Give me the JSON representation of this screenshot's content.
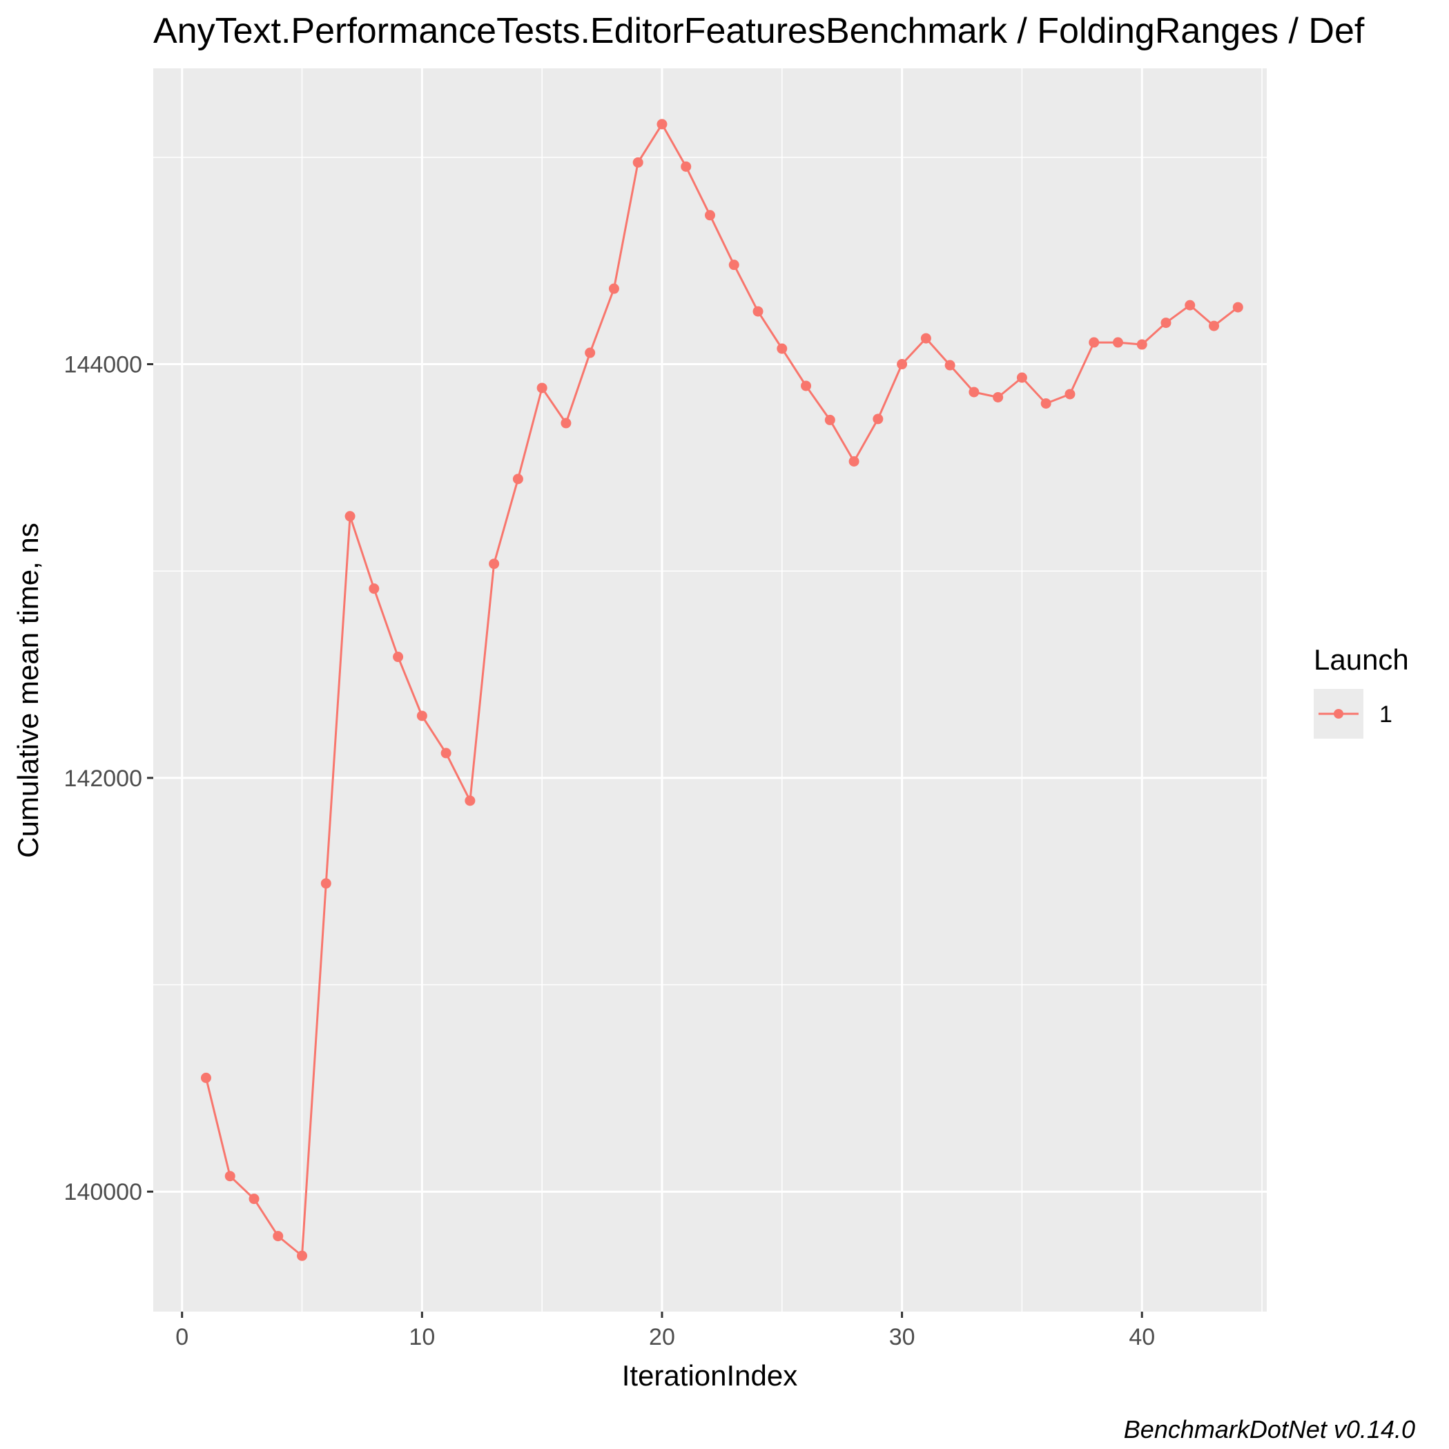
{
  "colors": {
    "panel_bg": "#ebebeb",
    "grid_major": "#ffffff",
    "series": "#f8766d",
    "tick_mark": "#333333",
    "legend_key_bg": "#ebebeb"
  },
  "caption": "BenchmarkDotNet v0.14.0",
  "chart_data": {
    "type": "line",
    "title": "AnyText.PerformanceTests.EditorFeaturesBenchmark / FoldingRanges / Def",
    "xlabel": "IterationIndex",
    "ylabel": "Cumulative mean time, ns",
    "xlim": [
      -1.2,
      45.2
    ],
    "ylim": [
      139420,
      145430
    ],
    "x_ticks": [
      0,
      10,
      20,
      30,
      40
    ],
    "y_ticks": [
      140000,
      142000,
      144000
    ],
    "x_tick_labels": [
      "0",
      "10",
      "20",
      "30",
      "40"
    ],
    "y_tick_labels": [
      "140000",
      "142000",
      "144000"
    ],
    "grid": true,
    "legend": {
      "title": "Launch",
      "position": "right"
    },
    "series": [
      {
        "name": "1",
        "x": [
          1,
          2,
          3,
          4,
          5,
          6,
          7,
          8,
          9,
          10,
          11,
          12,
          13,
          14,
          15,
          16,
          17,
          18,
          19,
          20,
          21,
          22,
          23,
          24,
          25,
          26,
          27,
          28,
          29,
          30,
          31,
          32,
          33,
          34,
          35,
          36,
          37,
          38,
          39,
          40,
          41,
          42,
          43,
          44
        ],
        "y": [
          140550,
          140075,
          139965,
          139785,
          139690,
          141490,
          143265,
          142915,
          142585,
          142300,
          142120,
          141890,
          143035,
          143445,
          143885,
          143715,
          144055,
          144365,
          144975,
          145160,
          144955,
          144720,
          144480,
          144255,
          144075,
          143895,
          143730,
          143530,
          143735,
          144000,
          144125,
          143995,
          143865,
          143840,
          143935,
          143810,
          143855,
          144105,
          144105,
          144095,
          144200,
          144285,
          144185,
          144275
        ]
      }
    ]
  }
}
